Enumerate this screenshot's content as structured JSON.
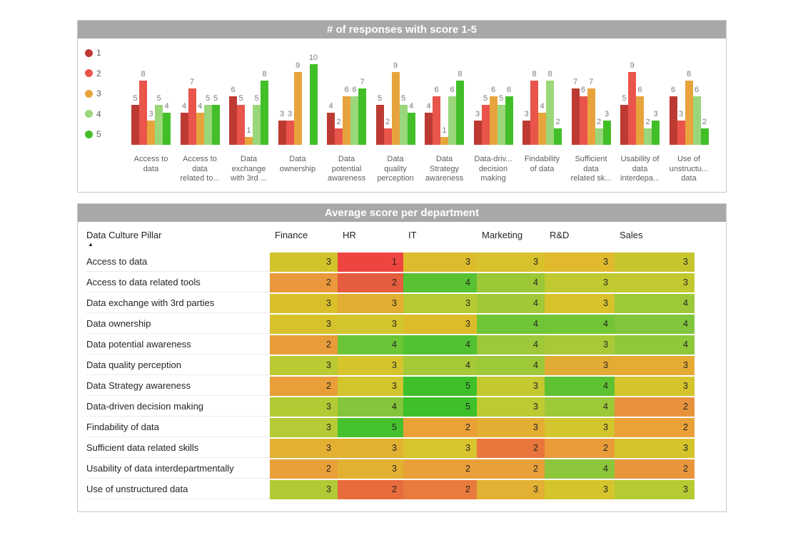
{
  "chart_data": [
    {
      "type": "bar",
      "title": "# of responses with score 1-5",
      "legend_position": "left",
      "grid": false,
      "xlabel": "",
      "ylabel": "",
      "ylim": [
        0,
        10
      ],
      "categories": [
        {
          "name": "Access to data",
          "label_lines": [
            "Access to",
            "data"
          ]
        },
        {
          "name": "Access to data related to...",
          "label_lines": [
            "Access to",
            "data",
            "related to..."
          ]
        },
        {
          "name": "Data exchange with 3rd ...",
          "label_lines": [
            "Data",
            "exchange",
            "with 3rd ..."
          ]
        },
        {
          "name": "Data ownership",
          "label_lines": [
            "Data",
            "ownership"
          ]
        },
        {
          "name": "Data potential awareness",
          "label_lines": [
            "Data",
            "potential",
            "awareness"
          ]
        },
        {
          "name": "Data quality perception",
          "label_lines": [
            "Data",
            "quality",
            "perception"
          ]
        },
        {
          "name": "Data Strategy awareness",
          "label_lines": [
            "Data",
            "Strategy",
            "awareness"
          ]
        },
        {
          "name": "Data-driv... decision making",
          "label_lines": [
            "Data-driv...",
            "decision",
            "making"
          ]
        },
        {
          "name": "Findability of data",
          "label_lines": [
            "Findability",
            "of data"
          ]
        },
        {
          "name": "Sufficient data related sk...",
          "label_lines": [
            "Sufficient",
            "data",
            "related sk..."
          ]
        },
        {
          "name": "Usability of data interdepa...",
          "label_lines": [
            "Usability of",
            "data",
            "interdepa..."
          ]
        },
        {
          "name": "Use of unstructu... data",
          "label_lines": [
            "Use of",
            "unstructu...",
            "data"
          ]
        }
      ],
      "series": [
        {
          "name": "1",
          "color": "#bd3a32",
          "values": [
            5,
            4,
            6,
            3,
            4,
            5,
            4,
            3,
            3,
            7,
            5,
            6
          ]
        },
        {
          "name": "2",
          "color": "#e9544b",
          "values": [
            8,
            7,
            5,
            3,
            2,
            2,
            6,
            5,
            8,
            6,
            9,
            3
          ]
        },
        {
          "name": "3",
          "color": "#e8a43c",
          "values": [
            3,
            4,
            1,
            9,
            6,
            9,
            1,
            6,
            4,
            7,
            6,
            8
          ]
        },
        {
          "name": "4",
          "color": "#9ad77a",
          "values": [
            5,
            5,
            5,
            0,
            6,
            5,
            6,
            5,
            8,
            2,
            2,
            6
          ]
        },
        {
          "name": "5",
          "color": "#42bf28",
          "values": [
            4,
            5,
            8,
            10,
            7,
            4,
            8,
            6,
            2,
            3,
            3,
            2
          ]
        }
      ]
    },
    {
      "type": "heatmap",
      "title": "Average score per department",
      "row_header": "Data Culture Pillar",
      "sort_indicator": "▲",
      "columns": [
        "Finance",
        "HR",
        "IT",
        "Marketing",
        "R&D",
        "Sales"
      ],
      "rows": [
        {
          "label": "Access to data",
          "values": [
            3,
            1,
            3,
            3,
            3,
            3
          ],
          "colors": [
            "#d2c32b",
            "#ee4540",
            "#dcbc2c",
            "#d7c12c",
            "#e0ba2c",
            "#c6c52d"
          ]
        },
        {
          "label": "Access to data related tools",
          "values": [
            2,
            2,
            4,
            4,
            3,
            3
          ],
          "colors": [
            "#e9993b",
            "#e55c3e",
            "#58c232",
            "#9cc838",
            "#c0c930",
            "#c2c930"
          ]
        },
        {
          "label": "Data exchange with 3rd parties",
          "values": [
            3,
            3,
            3,
            4,
            3,
            4
          ],
          "colors": [
            "#d9c02b",
            "#e2ad33",
            "#b6ca33",
            "#a0c938",
            "#d9c12c",
            "#9dc838"
          ]
        },
        {
          "label": "Data ownership",
          "values": [
            3,
            3,
            3,
            4,
            4,
            4
          ],
          "colors": [
            "#d7c22c",
            "#d3c52d",
            "#ddbc2b",
            "#70c536",
            "#72c536",
            "#81c53c"
          ]
        },
        {
          "label": "Data potential awareness",
          "values": [
            2,
            4,
            4,
            4,
            3,
            4
          ],
          "colors": [
            "#e89c3a",
            "#6cc437",
            "#52c232",
            "#9dc83a",
            "#a9c937",
            "#8fc83b"
          ]
        },
        {
          "label": "Data quality perception",
          "values": [
            3,
            3,
            4,
            4,
            3,
            3
          ],
          "colors": [
            "#bbca32",
            "#d6c42c",
            "#a5c937",
            "#9dc838",
            "#e2ab33",
            "#e5ab33"
          ]
        },
        {
          "label": "Data Strategy awareness",
          "values": [
            2,
            3,
            5,
            3,
            4,
            3
          ],
          "colors": [
            "#e89e39",
            "#d3c52d",
            "#3fc02b",
            "#c5c930",
            "#5ec233",
            "#d5c42c"
          ]
        },
        {
          "label": "Data-driven decision making",
          "values": [
            3,
            4,
            5,
            3,
            4,
            2
          ],
          "colors": [
            "#b3ca34",
            "#85c53b",
            "#3fc02b",
            "#beca31",
            "#9dc838",
            "#e9923c"
          ]
        },
        {
          "label": "Findability of data",
          "values": [
            3,
            5,
            2,
            3,
            3,
            2
          ],
          "colors": [
            "#b5ca34",
            "#46c12e",
            "#e9a138",
            "#e4ae33",
            "#d3c52d",
            "#e9a138"
          ]
        },
        {
          "label": "Sufficient data related skills",
          "values": [
            3,
            3,
            3,
            2,
            2,
            3
          ],
          "colors": [
            "#e3b032",
            "#e2b132",
            "#d8c42c",
            "#e8763c",
            "#e99b3a",
            "#d6c42c"
          ]
        },
        {
          "label": "Usability of data interdepartmentally",
          "values": [
            2,
            3,
            2,
            2,
            4,
            2
          ],
          "colors": [
            "#e9a038",
            "#e3b132",
            "#e9a038",
            "#e9a038",
            "#8cc63a",
            "#e9953b"
          ]
        },
        {
          "label": "Use of unstructured data",
          "values": [
            3,
            2,
            2,
            3,
            3,
            3
          ],
          "colors": [
            "#b1ca35",
            "#e86b3d",
            "#e87b3d",
            "#e2b032",
            "#d6c42c",
            "#b6ca33"
          ]
        }
      ]
    }
  ]
}
